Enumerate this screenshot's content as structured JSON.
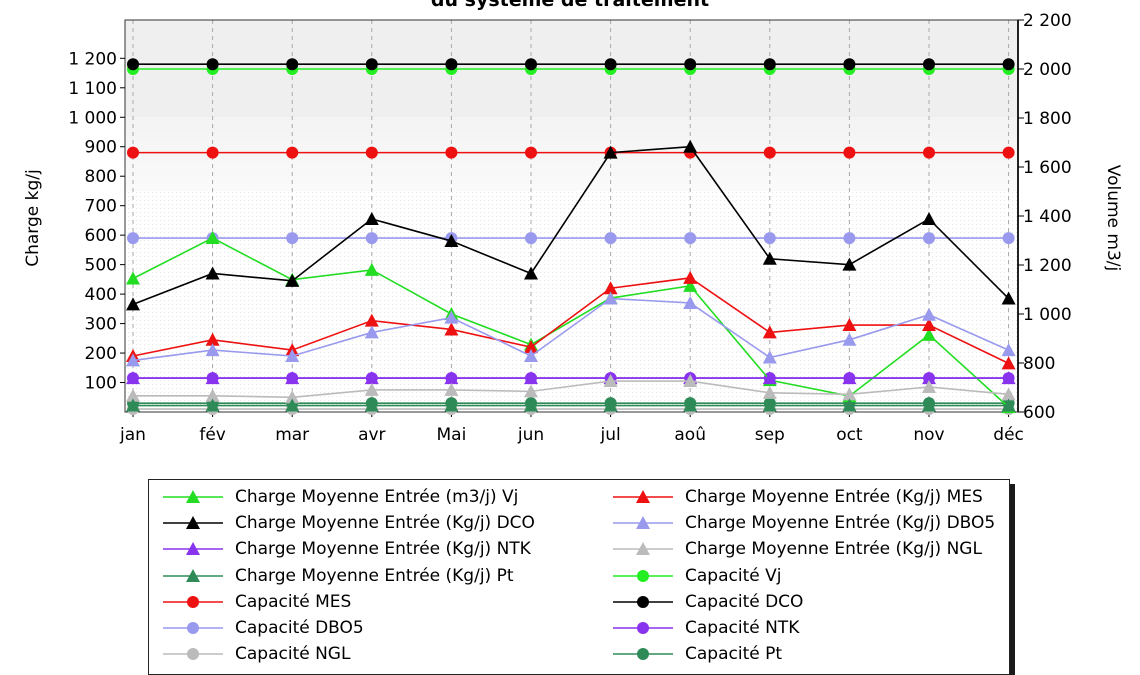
{
  "chart_data": {
    "type": "line",
    "title": "du système de traitement",
    "ylabel": "Charge kg/j",
    "y2label": "Volume m3/j",
    "categories": [
      "jan",
      "fév",
      "mar",
      "avr",
      "Mai",
      "jun",
      "jul",
      "aoû",
      "sep",
      "oct",
      "nov",
      "déc"
    ],
    "ylim": [
      0,
      1330
    ],
    "y2lim": [
      600,
      2200
    ],
    "yticks": [
      100,
      200,
      300,
      400,
      500,
      600,
      700,
      800,
      900,
      1000,
      1100,
      1200
    ],
    "yticklabels": [
      "100",
      "200",
      "300",
      "400",
      "500",
      "600",
      "700",
      "800",
      "900",
      "1 000",
      "1 100",
      "1 200"
    ],
    "y2ticks": [
      600,
      800,
      1000,
      1200,
      1400,
      1600,
      1800,
      2000,
      2200
    ],
    "y2ticklabels": [
      "600",
      "800",
      "1 000",
      "1 200",
      "1 400",
      "1 600",
      "1 800",
      "2 000",
      "2 200"
    ],
    "grid": true,
    "legend_position": "bottom",
    "series": [
      {
        "name": "Charge Moyenne Entrée (m3/j) Vj",
        "axis": "right",
        "marker": "triangle",
        "color": "#22dd22",
        "values": [
          1145,
          1310,
          1140,
          1180,
          1000,
          875,
          1065,
          1115,
          730,
          665,
          915,
          620
        ]
      },
      {
        "name": "Charge Moyenne Entrée (Kg/j) MES",
        "axis": "left",
        "marker": "triangle",
        "color": "#ee1111",
        "values": [
          190,
          245,
          210,
          310,
          280,
          220,
          420,
          455,
          270,
          295,
          295,
          165
        ]
      },
      {
        "name": "Charge Moyenne Entrée (Kg/j) DCO",
        "axis": "left",
        "marker": "triangle",
        "color": "#000000",
        "values": [
          365,
          470,
          445,
          655,
          580,
          470,
          880,
          900,
          520,
          500,
          655,
          385
        ]
      },
      {
        "name": "Charge Moyenne Entrée (Kg/j) DBO5",
        "axis": "left",
        "marker": "triangle",
        "color": "#9999ee",
        "values": [
          175,
          210,
          190,
          270,
          320,
          190,
          385,
          370,
          185,
          245,
          330,
          210
        ]
      },
      {
        "name": "Charge Moyenne Entrée (Kg/j) NTK",
        "axis": "left",
        "marker": "triangle",
        "color": "#8833ee",
        "values": [
          115,
          115,
          115,
          115,
          115,
          115,
          115,
          115,
          115,
          115,
          115,
          115
        ]
      },
      {
        "name": "Charge Moyenne Entrée (Kg/j) NGL",
        "axis": "left",
        "marker": "triangle",
        "color": "#bbbbbb",
        "values": [
          55,
          55,
          50,
          75,
          75,
          70,
          105,
          105,
          65,
          60,
          85,
          60
        ]
      },
      {
        "name": "Charge Moyenne Entrée (Kg/j) Pt",
        "axis": "left",
        "marker": "triangle",
        "color": "#2e8b57",
        "values": [
          22,
          22,
          22,
          22,
          22,
          22,
          22,
          22,
          22,
          22,
          22,
          22
        ]
      },
      {
        "name": "Capacité Vj",
        "axis": "right",
        "marker": "circle",
        "color": "#22ee22",
        "values": [
          2000,
          2000,
          2000,
          2000,
          2000,
          2000,
          2000,
          2000,
          2000,
          2000,
          2000,
          2000
        ]
      },
      {
        "name": "Capacité MES",
        "axis": "left",
        "marker": "circle",
        "color": "#ee1111",
        "values": [
          880,
          880,
          880,
          880,
          880,
          880,
          880,
          880,
          880,
          880,
          880,
          880
        ]
      },
      {
        "name": "Capacité DCO",
        "axis": "left",
        "marker": "circle",
        "color": "#000000",
        "values": [
          1180,
          1180,
          1180,
          1180,
          1180,
          1180,
          1180,
          1180,
          1180,
          1180,
          1180,
          1180
        ]
      },
      {
        "name": "Capacité DBO5",
        "axis": "left",
        "marker": "circle",
        "color": "#9999ee",
        "values": [
          590,
          590,
          590,
          590,
          590,
          590,
          590,
          590,
          590,
          590,
          590,
          590
        ]
      },
      {
        "name": "Capacité NTK",
        "axis": "left",
        "marker": "circle",
        "color": "#8833ee",
        "values": [
          115,
          115,
          115,
          115,
          115,
          115,
          115,
          115,
          115,
          115,
          115,
          115
        ]
      },
      {
        "name": "Capacité NGL",
        "axis": "left",
        "marker": "circle",
        "color": "#bbbbbb",
        "values": [
          10,
          10,
          10,
          10,
          10,
          10,
          10,
          10,
          10,
          10,
          10,
          10
        ]
      },
      {
        "name": "Capacité Pt",
        "axis": "left",
        "marker": "circle",
        "color": "#2e8b57",
        "values": [
          30,
          30,
          30,
          30,
          30,
          30,
          30,
          30,
          30,
          30,
          30,
          30
        ]
      }
    ]
  }
}
